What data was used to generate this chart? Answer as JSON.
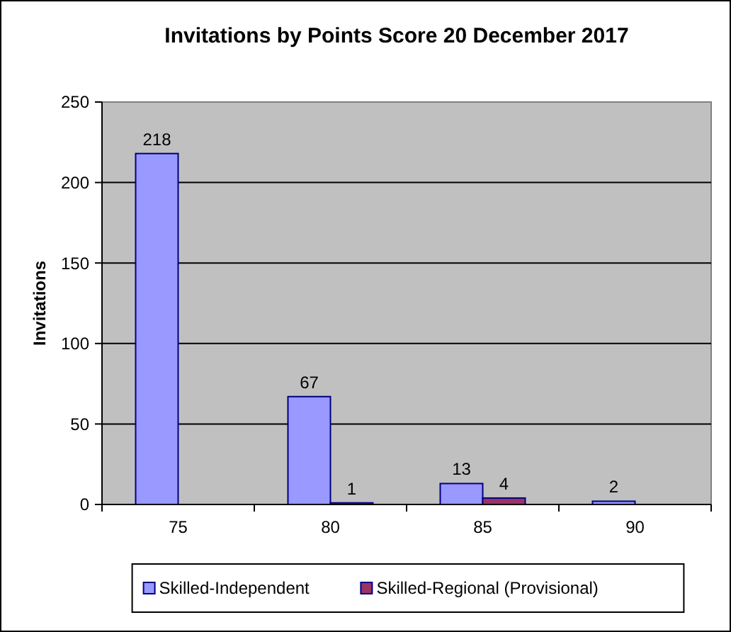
{
  "chart_data": {
    "type": "bar",
    "title": "Invitations by Points Score 20 December 2017",
    "ylabel": "Invitations",
    "categories": [
      "75",
      "80",
      "85",
      "90"
    ],
    "series": [
      {
        "name": "Skilled-Independent",
        "color": "#9999ff",
        "values": [
          218,
          67,
          13,
          2
        ]
      },
      {
        "name": "Skilled-Regional (Provisional)",
        "color": "#993366",
        "values": [
          null,
          1,
          4,
          null
        ]
      }
    ],
    "ylim": [
      0,
      250
    ],
    "yticks": [
      0,
      50,
      100,
      150,
      200,
      250
    ],
    "grid": "y",
    "legend": "bottom",
    "data_labels": true
  }
}
